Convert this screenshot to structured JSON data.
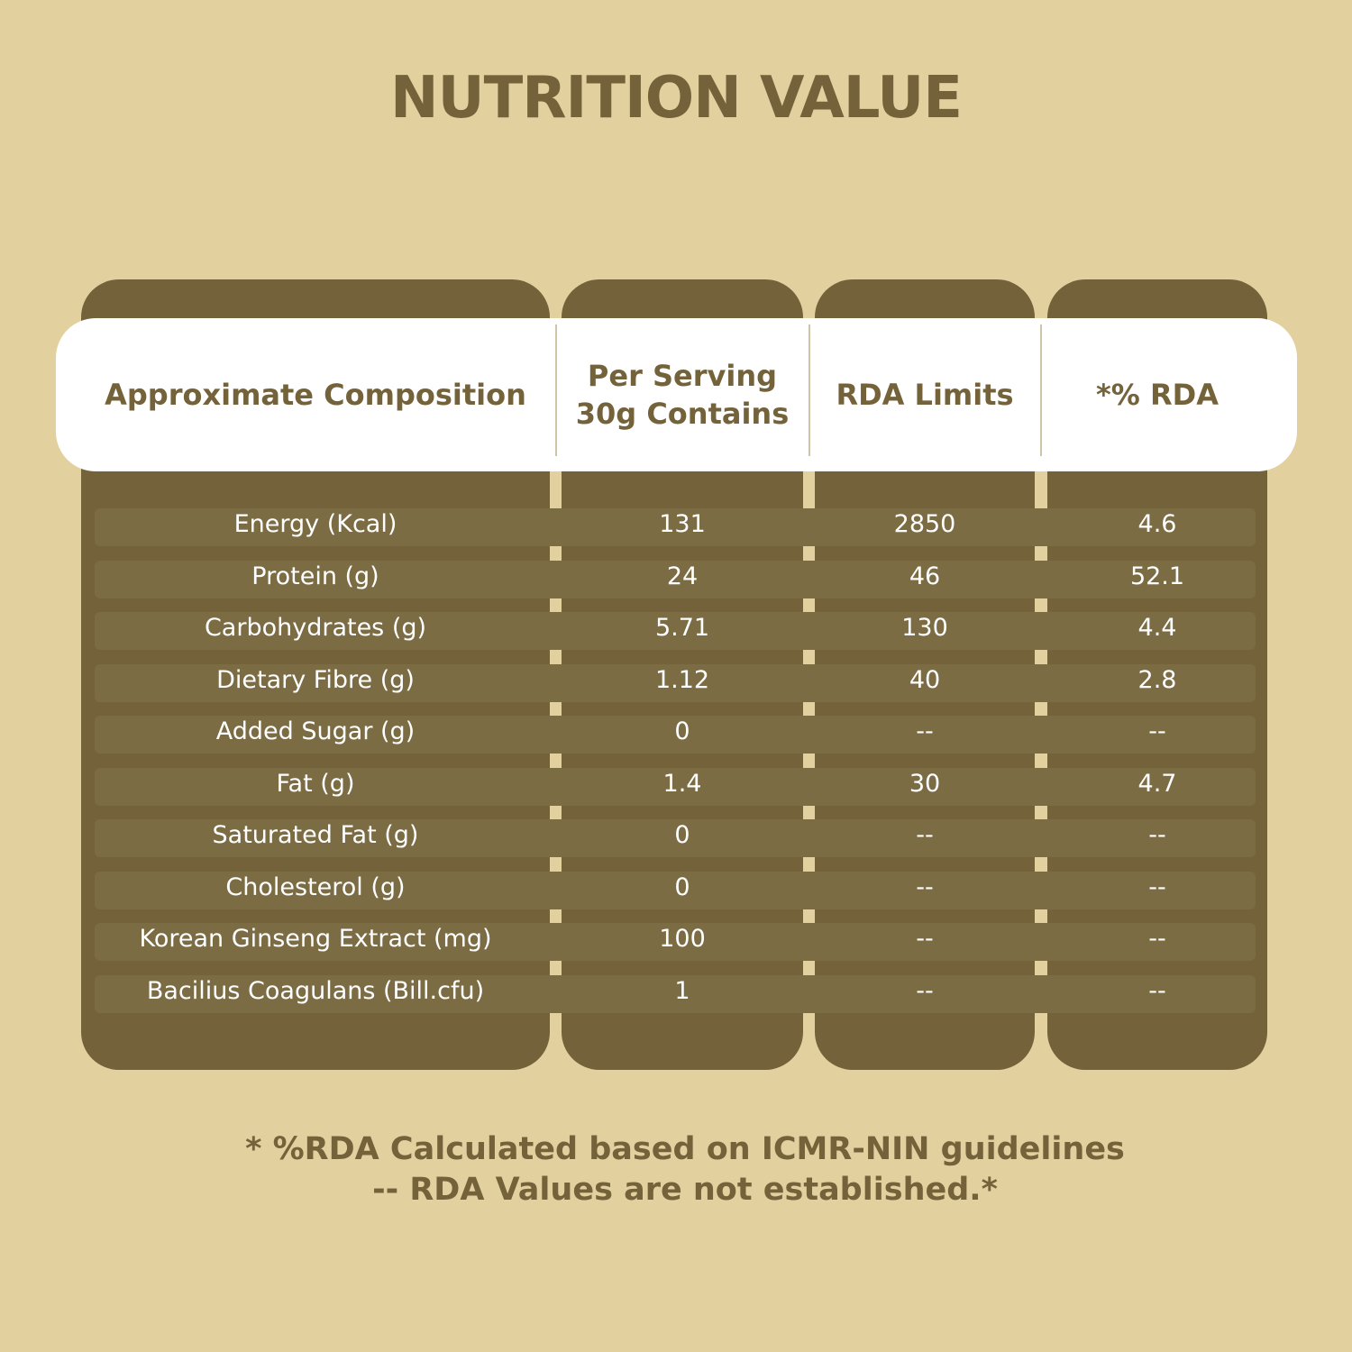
{
  "title": "NUTRITION VALUE",
  "headers": [
    "Approximate Composition",
    "Per Serving\n30g Contains",
    "RDA Limits",
    "*% RDA"
  ],
  "rows": [
    [
      "Energy (Kcal)",
      "131",
      "2850",
      "4.6"
    ],
    [
      "Protein (g)",
      "24",
      "46",
      "52.1"
    ],
    [
      "Carbohydrates (g)",
      "5.71",
      "130",
      "4.4"
    ],
    [
      "Dietary Fibre (g)",
      "1.12",
      "40",
      "2.8"
    ],
    [
      "Added Sugar (g)",
      "0",
      "--",
      "--"
    ],
    [
      "Fat (g)",
      "1.4",
      "30",
      "4.7"
    ],
    [
      "Saturated Fat (g)",
      "0",
      "--",
      "--"
    ],
    [
      "Cholesterol (g)",
      "0",
      "--",
      "--"
    ],
    [
      "Korean Ginseng Extract (mg)",
      "100",
      "--",
      "--"
    ],
    [
      "Bacilius Coagulans (Bill.cfu)",
      "1",
      "--",
      "--"
    ]
  ],
  "footnotes": [
    "* %RDA Calculated based on ICMR-NIN guidelines",
    "-- RDA Values are not established.*"
  ],
  "colors": {
    "background": "#e2d09f",
    "panel": "#73623a",
    "row": "#7c6c44",
    "text_accent": "#74633a",
    "header_bg": "#ffffff"
  }
}
